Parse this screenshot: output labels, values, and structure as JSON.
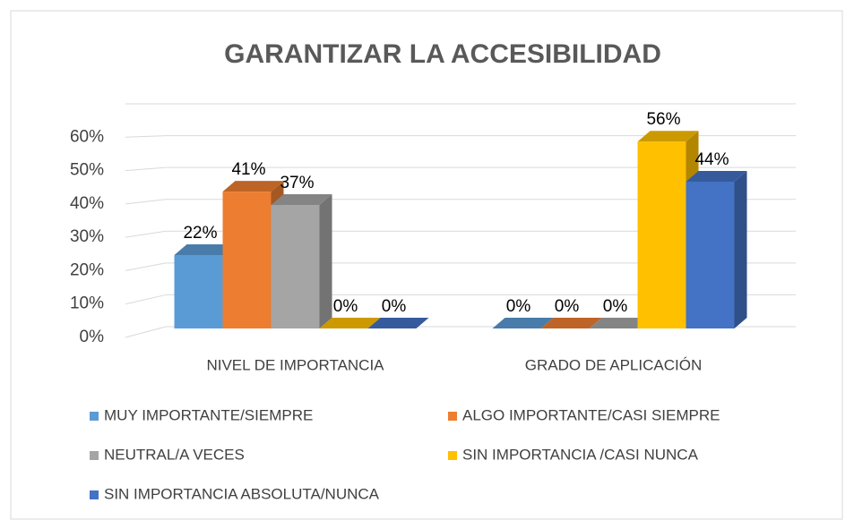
{
  "chart_data": {
    "type": "bar3d",
    "title": "GARANTIZAR LA ACCESIBILIDAD",
    "categories": [
      "NIVEL DE IMPORTANCIA",
      "GRADO DE APLICACIÓN"
    ],
    "series": [
      {
        "name": "MUY IMPORTANTE/SIEMPRE",
        "color": "#5b9bd5",
        "values": [
          22,
          0
        ],
        "value_labels": [
          "22%",
          "0%"
        ]
      },
      {
        "name": "ALGO IMPORTANTE/CASI SIEMPRE",
        "color": "#ed7d31",
        "values": [
          41,
          0
        ],
        "value_labels": [
          "41%",
          "0%"
        ]
      },
      {
        "name": "NEUTRAL/A VECES",
        "color": "#a5a5a5",
        "values": [
          37,
          0
        ],
        "value_labels": [
          "37%",
          "0%"
        ]
      },
      {
        "name": "SIN IMPORTANCIA /CASI NUNCA",
        "color": "#ffc000",
        "values": [
          0,
          56
        ],
        "value_labels": [
          "0%",
          "56%"
        ]
      },
      {
        "name": "SIN IMPORTANCIA ABSOLUTA/NUNCA",
        "color": "#4472c4",
        "values": [
          0,
          44
        ],
        "value_labels": [
          "0%",
          "44%"
        ]
      }
    ],
    "ylim": [
      0,
      70
    ],
    "yticks": [
      {
        "value": 0,
        "label": "0%"
      },
      {
        "value": 10,
        "label": "10%"
      },
      {
        "value": 20,
        "label": "20%"
      },
      {
        "value": 30,
        "label": "30%"
      },
      {
        "value": 40,
        "label": "40%"
      },
      {
        "value": 50,
        "label": "50%"
      },
      {
        "value": 60,
        "label": "60%"
      }
    ],
    "grid": true
  }
}
